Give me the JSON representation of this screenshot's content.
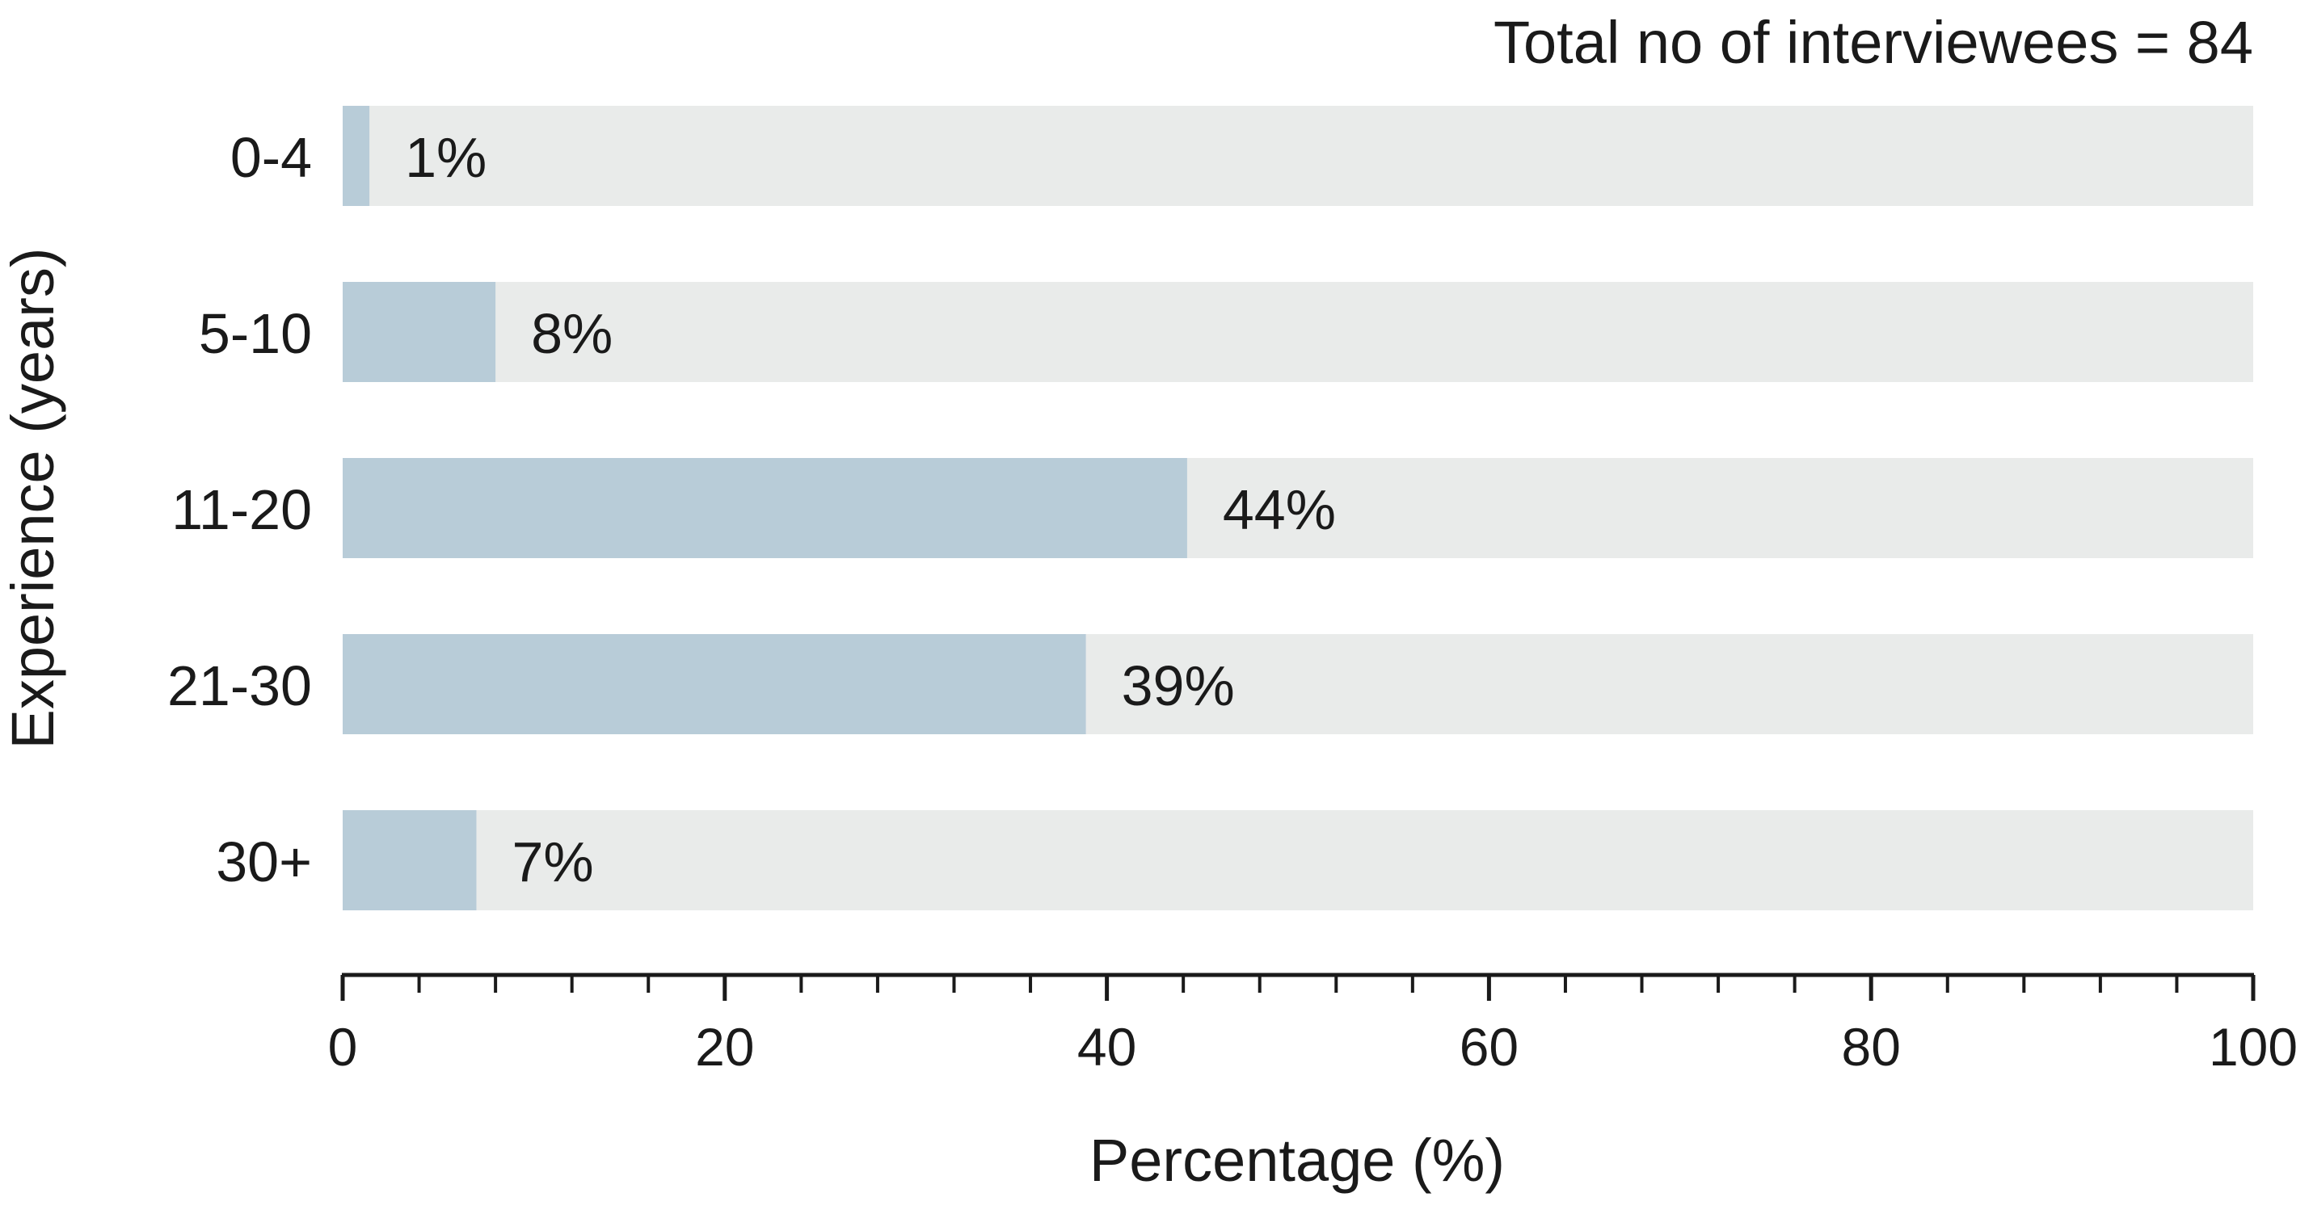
{
  "chart_data": {
    "type": "bar",
    "orientation": "horizontal",
    "annotation": "Total no of interviewees = 84",
    "xlabel": "Percentage (%)",
    "ylabel": "Experience (years)",
    "categories": [
      "0-4",
      "5-10",
      "11-20",
      "21-30",
      "30+"
    ],
    "values": [
      1.4,
      8,
      44.2,
      38.9,
      7
    ],
    "data_labels": [
      "1%",
      "8%",
      "44%",
      "39%",
      "7%"
    ],
    "xlim": [
      0,
      100
    ],
    "x_ticks": [
      0,
      20,
      40,
      60,
      80,
      100
    ],
    "x_minor_step": 4,
    "grid": false,
    "colors": {
      "bar": "#b8ccd8",
      "track": "#e9ebea",
      "axis": "#1a1a1a"
    }
  }
}
